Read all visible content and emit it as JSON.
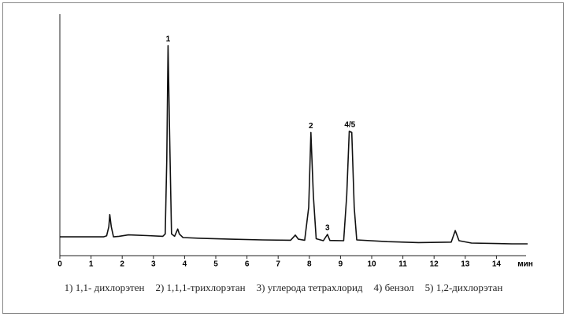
{
  "chart_data": {
    "type": "line",
    "x": [
      0.0,
      1.4,
      1.5,
      1.57,
      1.6,
      1.65,
      1.72,
      1.9,
      2.2,
      2.8,
      3.3,
      3.38,
      3.43,
      3.47,
      3.52,
      3.58,
      3.68,
      3.78,
      3.83,
      3.95,
      4.5,
      5.5,
      6.5,
      7.4,
      7.55,
      7.65,
      7.85,
      7.98,
      8.05,
      8.13,
      8.22,
      8.45,
      8.58,
      8.66,
      9.1,
      9.2,
      9.28,
      9.36,
      9.44,
      9.52,
      10.5,
      11.5,
      12.55,
      12.68,
      12.8,
      13.2,
      14.5,
      15.0
    ],
    "series": [
      {
        "color": "#111111",
        "values": [
          7.8,
          7.8,
          8.2,
          12,
          17,
          12,
          7.8,
          8,
          8.6,
          8.3,
          8.0,
          9,
          40,
          87,
          50,
          9,
          8,
          11,
          9,
          7.5,
          7.2,
          6.8,
          6.5,
          6.4,
          8.5,
          6.8,
          6.4,
          20,
          51,
          25,
          7,
          6.2,
          8.8,
          6.3,
          6.2,
          25,
          51.5,
          51,
          20,
          6.5,
          5.8,
          5.4,
          5.6,
          10.4,
          6.2,
          5.2,
          4.9,
          4.9
        ]
      }
    ],
    "xlim": [
      0,
      15
    ],
    "ylim": [
      0,
      100
    ],
    "xticks": [
      0,
      1,
      2,
      3,
      4,
      5,
      6,
      7,
      8,
      9,
      10,
      11,
      12,
      13,
      14
    ],
    "xlabel": "мин",
    "annotations": [
      {
        "text": "1",
        "x": 3.47,
        "y": 87
      },
      {
        "text": "2",
        "x": 8.05,
        "y": 51
      },
      {
        "text": "3",
        "x": 8.58,
        "y": 8.8
      },
      {
        "text": "4/5",
        "x": 9.3,
        "y": 51.5
      }
    ],
    "caption": [
      "1) 1,1- дихлорэтен",
      "2) 1,1,1-трихлорэтан",
      "3) углерода тетрахлорид",
      "4) бензол",
      "5) 1,2-дихлорэтан"
    ]
  }
}
